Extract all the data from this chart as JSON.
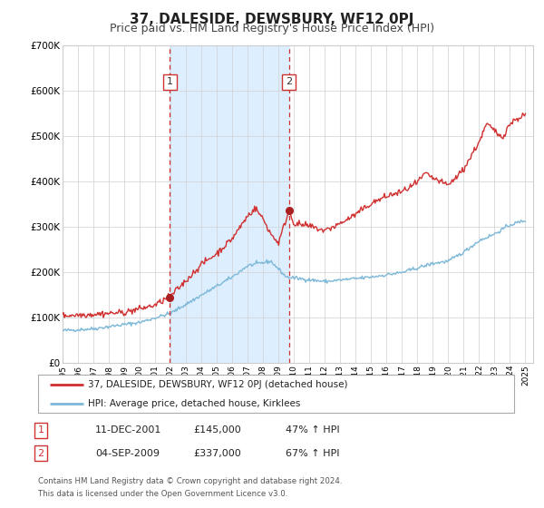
{
  "title": "37, DALESIDE, DEWSBURY, WF12 0PJ",
  "subtitle": "Price paid vs. HM Land Registry's House Price Index (HPI)",
  "title_fontsize": 11,
  "subtitle_fontsize": 9,
  "background_color": "#ffffff",
  "plot_bg_color": "#ffffff",
  "grid_color": "#d0d0d0",
  "ylim": [
    0,
    700000
  ],
  "yticks": [
    0,
    100000,
    200000,
    300000,
    400000,
    500000,
    600000,
    700000
  ],
  "ytick_labels": [
    "£0",
    "£100K",
    "£200K",
    "£300K",
    "£400K",
    "£500K",
    "£600K",
    "£700K"
  ],
  "xlim_start": 1995.0,
  "xlim_end": 2025.5,
  "xtick_years": [
    1995,
    1996,
    1997,
    1998,
    1999,
    2000,
    2001,
    2002,
    2003,
    2004,
    2005,
    2006,
    2007,
    2008,
    2009,
    2010,
    2011,
    2012,
    2013,
    2014,
    2015,
    2016,
    2017,
    2018,
    2019,
    2020,
    2021,
    2022,
    2023,
    2024,
    2025
  ],
  "hpi_color": "#7db8d8",
  "price_color": "#d03030",
  "vline_color": "#d03030",
  "shade_color": "#ddeeff",
  "marker_color": "#aa2020",
  "sale1_x": 2001.95,
  "sale1_y": 145000,
  "sale2_x": 2009.67,
  "sale2_y": 337000,
  "legend_label_price": "37, DALESIDE, DEWSBURY, WF12 0PJ (detached house)",
  "legend_label_hpi": "HPI: Average price, detached house, Kirklees",
  "table_row1": [
    "1",
    "11-DEC-2001",
    "£145,000",
    "47% ↑ HPI"
  ],
  "table_row2": [
    "2",
    "04-SEP-2009",
    "£337,000",
    "67% ↑ HPI"
  ],
  "footer_line1": "Contains HM Land Registry data © Crown copyright and database right 2024.",
  "footer_line2": "This data is licensed under the Open Government Licence v3.0."
}
